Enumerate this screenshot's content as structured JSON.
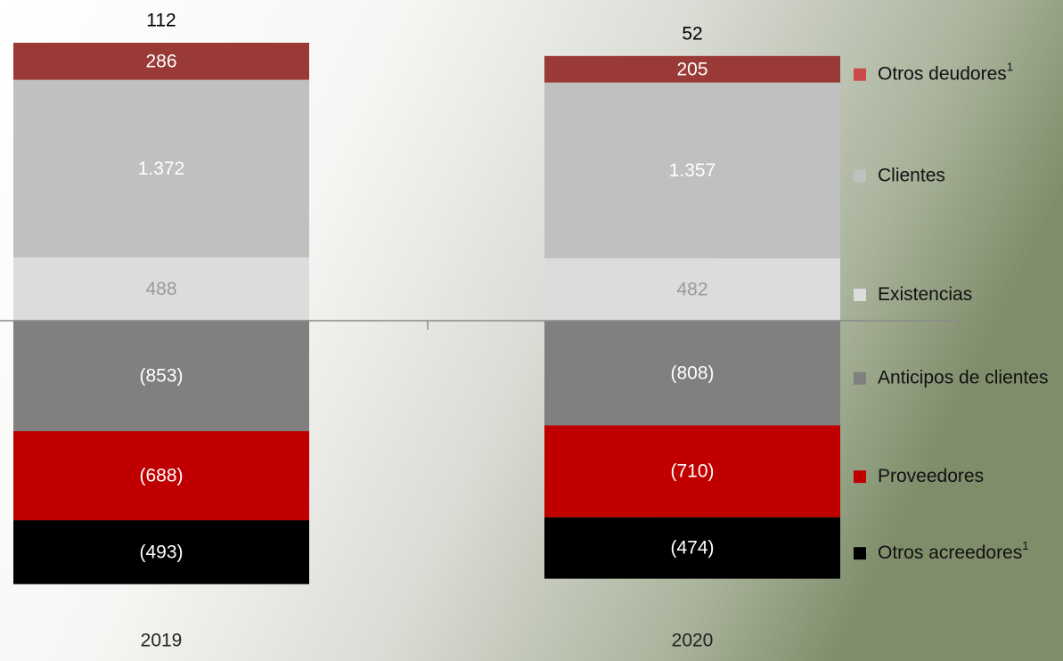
{
  "chart_data": {
    "type": "stacked-bar",
    "categories": [
      "2019",
      "2020"
    ],
    "totals": [
      112,
      52
    ],
    "series": [
      {
        "name": "Existencias",
        "color": "#dcdcdc",
        "label_color": "#9a9a9a",
        "values": [
          488,
          482
        ],
        "value_labels": [
          "488",
          "482"
        ]
      },
      {
        "name": "Clientes",
        "color": "#c0c0c0",
        "label_color": "#ffffff",
        "values": [
          1372,
          1357
        ],
        "value_labels": [
          "1.372",
          "1.357"
        ]
      },
      {
        "name": "Otros deudores",
        "footnote": "1",
        "color": "#993a36",
        "legend_color": "#cc4a4a",
        "label_color": "#ffffff",
        "values": [
          286,
          205
        ],
        "value_labels": [
          "286",
          "205"
        ]
      },
      {
        "name": "Anticipos de clientes",
        "color": "#808080",
        "label_color": "#ffffff",
        "values": [
          -853,
          -808
        ],
        "value_labels": [
          "(853)",
          "(808)"
        ]
      },
      {
        "name": "Proveedores",
        "color": "#c00000",
        "label_color": "#ffffff",
        "values": [
          -688,
          -710
        ],
        "value_labels": [
          "(688)",
          "(710)"
        ]
      },
      {
        "name": "Otros acreedores",
        "footnote": "1",
        "color": "#000000",
        "label_color": "#ffffff",
        "values": [
          -493,
          -474
        ],
        "value_labels": [
          "(493)",
          "(474)"
        ]
      }
    ]
  }
}
